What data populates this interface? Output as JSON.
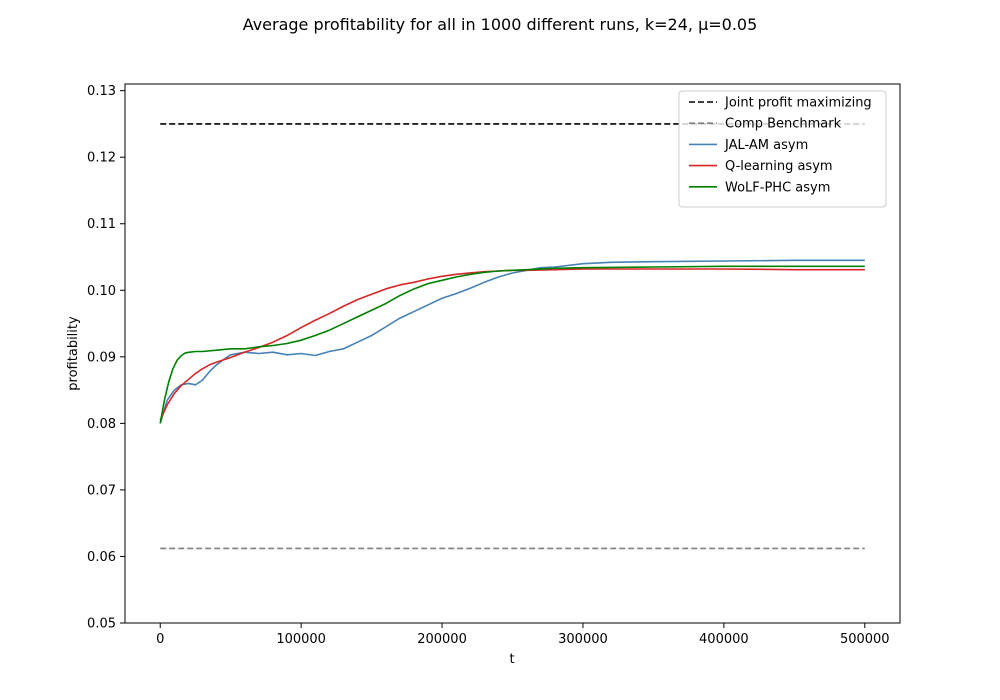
{
  "chart_data": {
    "type": "line",
    "title": "Average profitability for all in 1000 different runs, k=24, μ=0.05",
    "xlabel": "t",
    "ylabel": "profitability",
    "xlim": [
      -25000,
      525000
    ],
    "ylim": [
      0.05,
      0.131
    ],
    "x_ticks": [
      0,
      100000,
      200000,
      300000,
      400000,
      500000
    ],
    "x_tick_labels": [
      "0",
      "100000",
      "200000",
      "300000",
      "400000",
      "500000"
    ],
    "y_ticks": [
      0.05,
      0.06,
      0.07,
      0.08,
      0.09,
      0.1,
      0.11,
      0.12,
      0.13
    ],
    "y_tick_labels": [
      "0.05",
      "0.06",
      "0.07",
      "0.08",
      "0.09",
      "0.10",
      "0.11",
      "0.12",
      "0.13"
    ],
    "grid": false,
    "legend_position": "top-right",
    "series": [
      {
        "name": "Joint profit maximizing",
        "color": "#000000",
        "dash": "dashed",
        "x": [
          0,
          500000
        ],
        "y": [
          0.125,
          0.125
        ]
      },
      {
        "name": "Comp Benchmark",
        "color": "#808080",
        "dash": "dashed",
        "x": [
          0,
          500000
        ],
        "y": [
          0.0612,
          0.0612
        ]
      },
      {
        "name": "JAL-AM asym",
        "color": "#4682b4",
        "dash": "solid",
        "x": [
          0,
          5000,
          10000,
          15000,
          20000,
          25000,
          30000,
          35000,
          40000,
          45000,
          50000,
          60000,
          70000,
          80000,
          90000,
          100000,
          110000,
          120000,
          130000,
          140000,
          150000,
          160000,
          170000,
          180000,
          190000,
          200000,
          210000,
          220000,
          230000,
          240000,
          250000,
          260000,
          270000,
          280000,
          300000,
          320000,
          350000,
          400000,
          450000,
          500000
        ],
        "y": [
          0.08,
          0.0835,
          0.085,
          0.0858,
          0.086,
          0.0858,
          0.0865,
          0.0878,
          0.0888,
          0.0896,
          0.0903,
          0.0907,
          0.0905,
          0.0907,
          0.0903,
          0.0905,
          0.0902,
          0.0908,
          0.0912,
          0.0922,
          0.0932,
          0.0945,
          0.0958,
          0.0968,
          0.0978,
          0.0988,
          0.0995,
          0.1003,
          0.1012,
          0.102,
          0.1026,
          0.103,
          0.1034,
          0.1035,
          0.104,
          0.1042,
          0.1043,
          0.1044,
          0.1045,
          0.1045
        ]
      },
      {
        "name": "Q-learning asym",
        "color": "#d62728",
        "dash": "solid",
        "x": [
          0,
          5000,
          10000,
          15000,
          20000,
          25000,
          30000,
          35000,
          40000,
          50000,
          60000,
          70000,
          80000,
          90000,
          100000,
          110000,
          120000,
          130000,
          140000,
          150000,
          160000,
          170000,
          180000,
          190000,
          200000,
          210000,
          220000,
          230000,
          240000,
          250000,
          260000,
          280000,
          300000,
          350000,
          400000,
          450000,
          500000
        ],
        "y": [
          0.0805,
          0.0828,
          0.0845,
          0.0857,
          0.0866,
          0.0875,
          0.0882,
          0.0888,
          0.0892,
          0.0899,
          0.0907,
          0.0914,
          0.0922,
          0.0932,
          0.0944,
          0.0955,
          0.0965,
          0.0976,
          0.0986,
          0.0994,
          0.1002,
          0.1008,
          0.1012,
          0.1017,
          0.1021,
          0.1024,
          0.1026,
          0.1028,
          0.1029,
          0.103,
          0.103,
          0.1031,
          0.1032,
          0.1032,
          0.1032,
          0.1031,
          0.1031
        ]
      },
      {
        "name": "WoLF-PHC asym",
        "color": "#008000",
        "dash": "solid",
        "x": [
          0,
          3000,
          6000,
          9000,
          12000,
          15000,
          18000,
          21000,
          25000,
          30000,
          40000,
          50000,
          60000,
          70000,
          80000,
          90000,
          100000,
          110000,
          120000,
          130000,
          140000,
          150000,
          160000,
          170000,
          180000,
          190000,
          200000,
          210000,
          220000,
          230000,
          240000,
          250000,
          260000,
          280000,
          300000,
          350000,
          400000,
          450000,
          500000
        ],
        "y": [
          0.08,
          0.0835,
          0.0862,
          0.0882,
          0.0895,
          0.0902,
          0.0906,
          0.0907,
          0.0908,
          0.0908,
          0.091,
          0.0912,
          0.0912,
          0.0915,
          0.0917,
          0.092,
          0.0925,
          0.0932,
          0.094,
          0.095,
          0.096,
          0.097,
          0.098,
          0.0992,
          0.1002,
          0.101,
          0.1015,
          0.102,
          0.1024,
          0.1027,
          0.1029,
          0.103,
          0.1031,
          0.1033,
          0.1034,
          0.1035,
          0.1036,
          0.1036,
          0.1036
        ]
      }
    ]
  }
}
